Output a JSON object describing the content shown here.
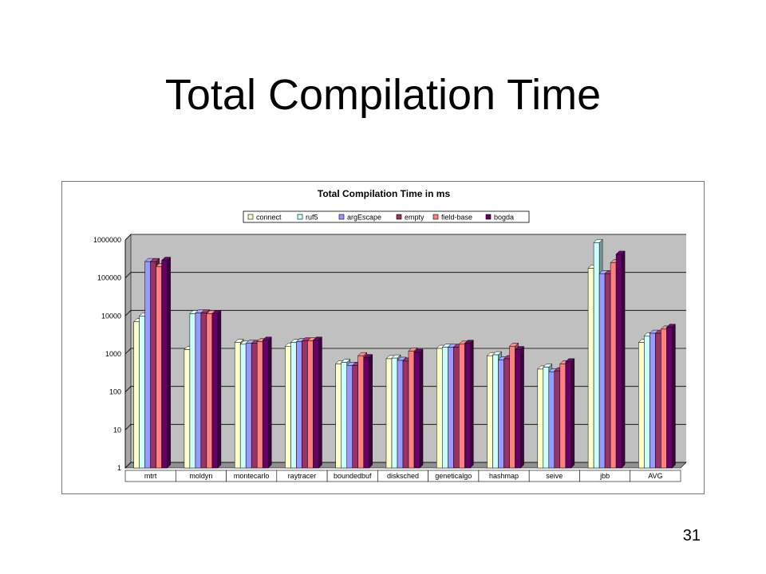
{
  "slide": {
    "title": "Total Compilation Time",
    "page_number": "31"
  },
  "colors": {
    "plot_background": "#c0c0c0",
    "series": [
      "#ffffcc",
      "#ccffff",
      "#9999ff",
      "#993366",
      "#ff8080",
      "#660066"
    ]
  },
  "chart_data": {
    "type": "bar",
    "title": "Total Compilation Time in ms",
    "xlabel": "",
    "ylabel": "",
    "yscale": "log",
    "ylim": [
      1,
      1000000
    ],
    "yticks": [
      "1",
      "10",
      "100",
      "1000",
      "10000",
      "100000",
      "1000000"
    ],
    "grid": true,
    "legend": "top",
    "categories": [
      "mtrt",
      "moldyn",
      "montecarlo",
      "raytracer",
      "boundedbuf",
      "disksched",
      "geneticalgo",
      "hashmap",
      "seive",
      "jbb",
      "AVG"
    ],
    "series": [
      {
        "name": "connect",
        "values": [
          7000,
          1300,
          2000,
          1600,
          550,
          750,
          1400,
          900,
          400,
          180000,
          2000
        ]
      },
      {
        "name": "ruf5",
        "values": [
          10000,
          11500,
          1800,
          2000,
          600,
          780,
          1500,
          950,
          450,
          850000,
          3000
        ]
      },
      {
        "name": "argEscape",
        "values": [
          270000,
          12000,
          1900,
          2100,
          500,
          680,
          1500,
          700,
          340,
          130000,
          3500
        ]
      },
      {
        "name": "empty",
        "values": [
          270000,
          12000,
          1900,
          2200,
          500,
          650,
          1500,
          750,
          360,
          130000,
          3500
        ]
      },
      {
        "name": "field-base",
        "values": [
          200000,
          11500,
          2100,
          2200,
          900,
          1200,
          1800,
          1600,
          550,
          250000,
          4500
        ]
      },
      {
        "name": "bogda",
        "values": [
          290000,
          11500,
          2300,
          2300,
          800,
          1100,
          1900,
          1300,
          620,
          420000,
          5000
        ]
      }
    ]
  }
}
